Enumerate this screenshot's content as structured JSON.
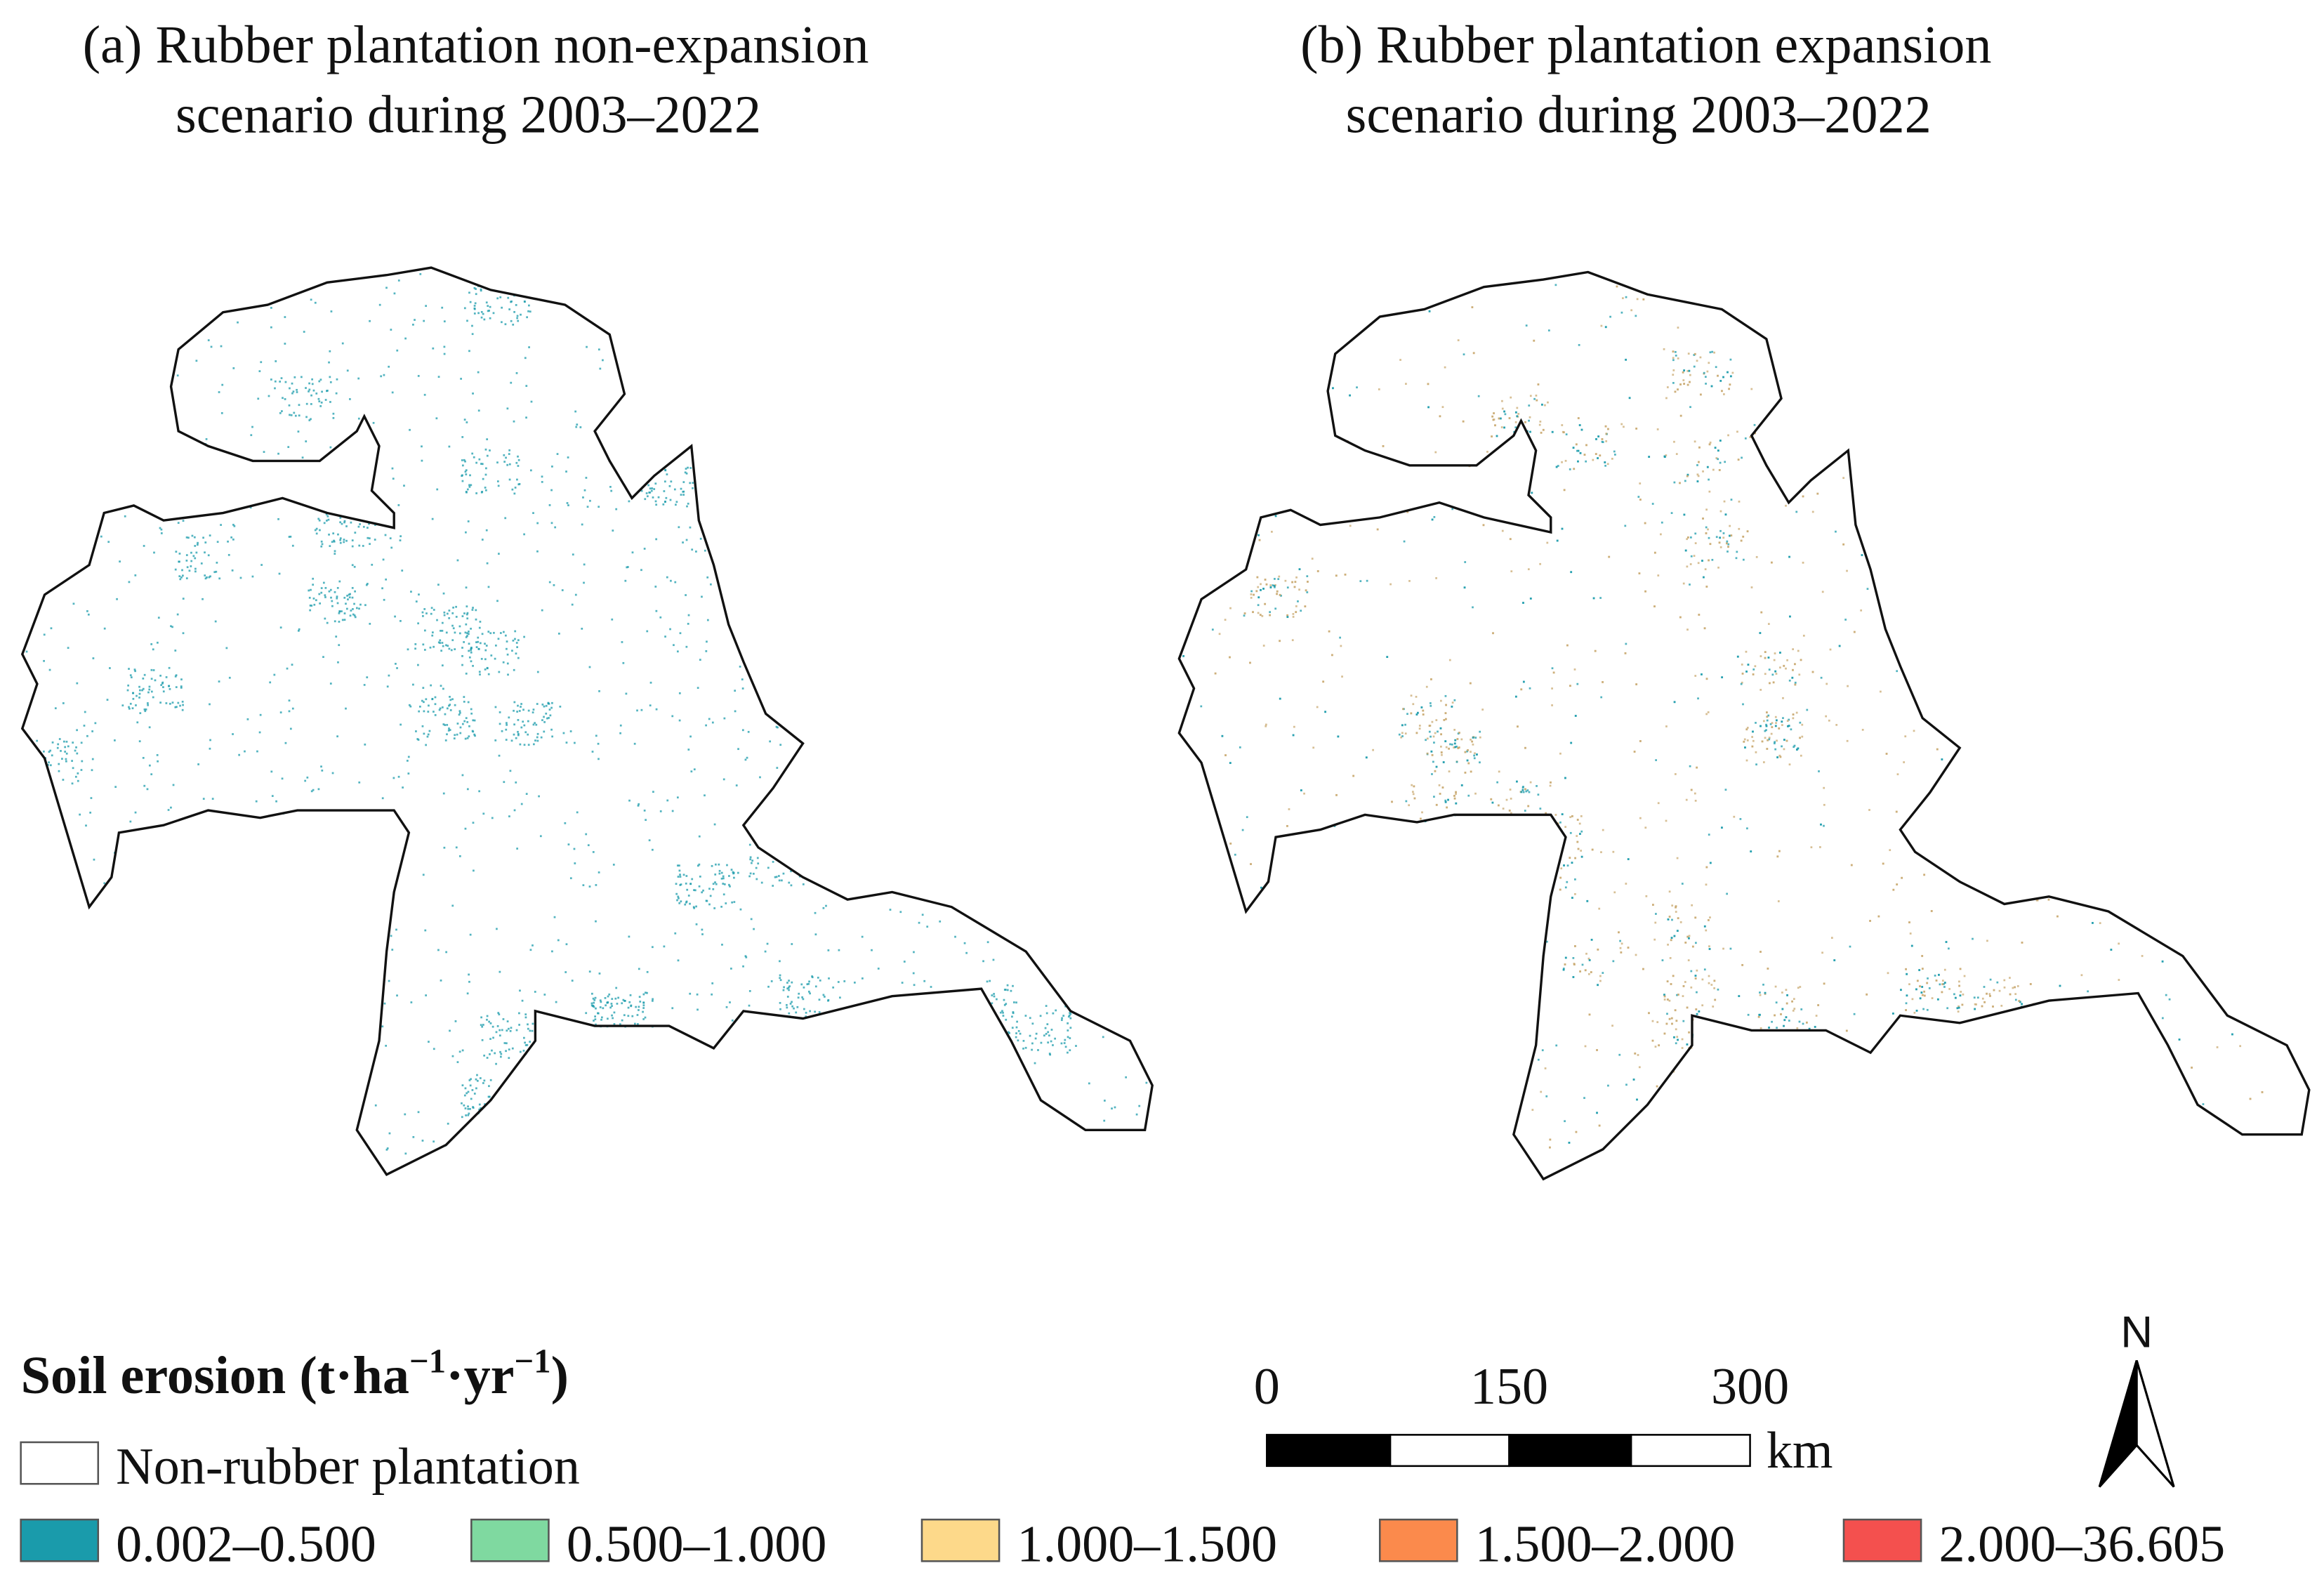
{
  "panels": [
    {
      "title_lines": [
        "(a) Rubber plantation non-expansion",
        "scenario during 2003–2022"
      ]
    },
    {
      "title_lines": [
        "(b) Rubber plantation expansion",
        "scenario during 2003–2022"
      ]
    }
  ],
  "legend": {
    "title": [
      "Soil erosion (t·ha",
      "−1",
      "·yr",
      "−1",
      ")"
    ],
    "items": [
      {
        "label": "Non-rubber plantation",
        "color": "#ffffff"
      },
      {
        "label": "0.002–0.500",
        "color": "#1a9bab"
      },
      {
        "label": "0.500–1.000",
        "color": "#7fd9a0"
      },
      {
        "label": "1.000–1.500",
        "color": "#fdd98a"
      },
      {
        "label": "1.500–2.000",
        "color": "#fb8a4c"
      },
      {
        "label": "2.000–36.605",
        "color": "#f4504e"
      }
    ]
  },
  "scale_bar": {
    "ticks": [
      0,
      150,
      300
    ],
    "unit": "km"
  },
  "north_arrow": "N"
}
